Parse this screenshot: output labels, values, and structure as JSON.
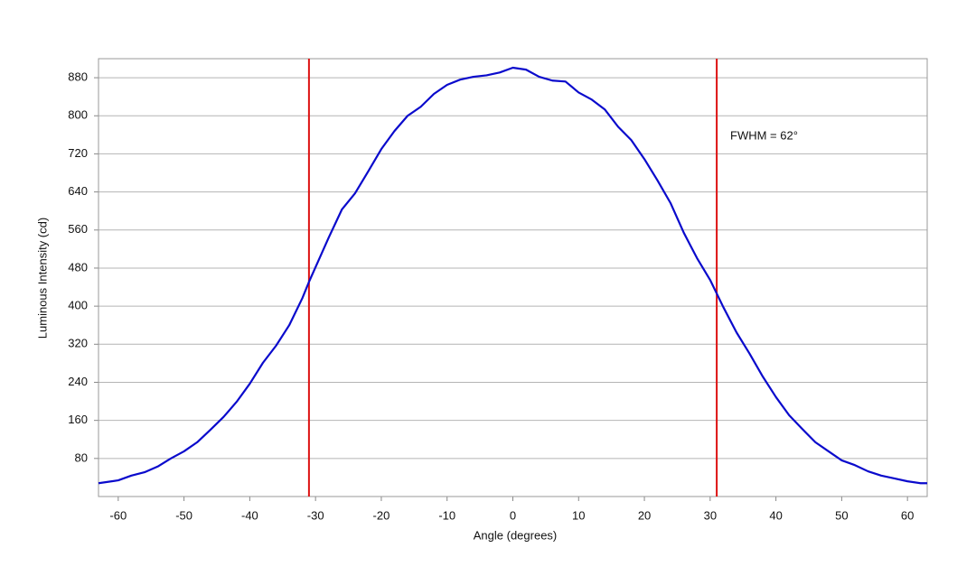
{
  "chart_data": {
    "type": "line",
    "x_label": "Angle (degrees)",
    "y_label": "Luminous Intensity (cd)",
    "annotation": "FWHM = 62°",
    "x": [
      -63,
      -60,
      -58,
      -56,
      -54,
      -52,
      -50,
      -48,
      -46,
      -44,
      -42,
      -40,
      -38,
      -36,
      -34,
      -32,
      -31,
      -30,
      -28,
      -26,
      -24,
      -22,
      -20,
      -18,
      -16,
      -14,
      -12,
      -10,
      -8,
      -6,
      -4,
      -2,
      0,
      2,
      4,
      6,
      8,
      10,
      12,
      14,
      16,
      18,
      20,
      22,
      24,
      26,
      28,
      30,
      32,
      34,
      36,
      38,
      40,
      42,
      44,
      46,
      48,
      50,
      52,
      54,
      56,
      58,
      60,
      62,
      63
    ],
    "series": [
      {
        "color": "#0a0acc",
        "values": [
          28,
          34,
          44,
          51,
          63,
          80,
          95,
          114,
          140,
          167,
          199,
          237,
          281,
          317,
          360,
          417,
          451,
          482,
          544,
          603,
          637,
          683,
          730,
          768,
          800,
          819,
          846,
          865,
          876,
          882,
          885,
          891,
          901,
          897,
          882,
          874,
          872,
          849,
          834,
          813,
          777,
          749,
          709,
          664,
          616,
          554,
          501,
          455,
          398,
          345,
          300,
          252,
          209,
          171,
          142,
          114,
          95,
          76,
          66,
          53,
          44,
          38,
          32,
          28,
          28
        ]
      }
    ],
    "vlines": [
      -31,
      31
    ],
    "vline_color": "#dd1111",
    "xlim": [
      -63,
      63
    ],
    "xticks": [
      -60,
      -50,
      -40,
      -30,
      -20,
      -10,
      0,
      10,
      20,
      30,
      40,
      50,
      60
    ],
    "ylim": [
      0,
      920
    ],
    "yticks": [
      80,
      160,
      240,
      320,
      400,
      480,
      560,
      640,
      720,
      800,
      880
    ],
    "grid": true
  }
}
